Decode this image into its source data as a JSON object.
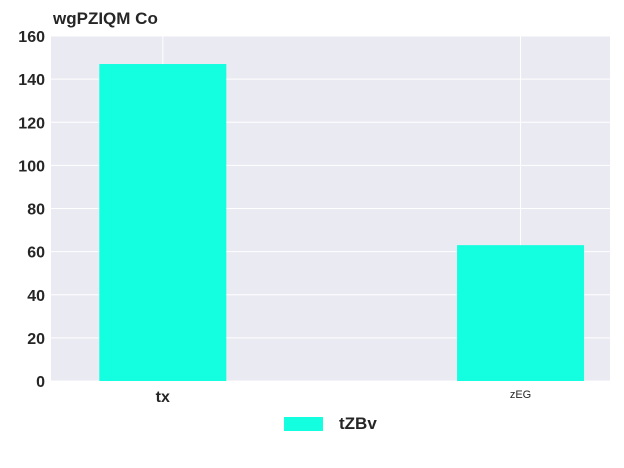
{
  "chart_data": {
    "type": "bar",
    "title": "wgPZIQM Co",
    "xlabel": "",
    "ylabel": "",
    "categories": [
      "tx",
      "zEG"
    ],
    "series": [
      {
        "name": "tZBv",
        "values": [
          147,
          63
        ]
      }
    ],
    "ylim": [
      0,
      160
    ],
    "yticks": [
      0,
      20,
      40,
      60,
      80,
      100,
      120,
      140,
      160
    ],
    "grid": true,
    "legend": "bottom-center",
    "colors": {
      "bar": "#13FFE0",
      "plot_background": "#EAEAF2",
      "grid": "#FFFFFF",
      "text": "#262626"
    }
  }
}
